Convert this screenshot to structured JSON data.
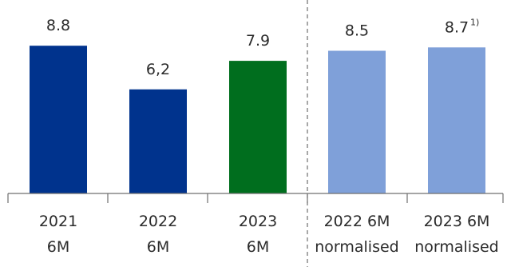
{
  "chart_data": {
    "type": "bar",
    "categories": [
      [
        "2021",
        "6M"
      ],
      [
        "2022",
        "6M"
      ],
      [
        "2023",
        "6M"
      ],
      [
        "2022 6M",
        "normalised"
      ],
      [
        "2023 6M",
        "normalised"
      ]
    ],
    "values": [
      8.8,
      6.2,
      7.9,
      8.5,
      8.7
    ],
    "value_labels": [
      "8.8",
      "6,2",
      "7.9",
      "8.5",
      "8.7"
    ],
    "value_footnotes": [
      "",
      "",
      "",
      "",
      "1)"
    ],
    "bar_colors": [
      "#00338d",
      "#00338d",
      "#006e1e",
      "#7fa0d9",
      "#7fa0d9"
    ],
    "ylim": [
      0,
      10
    ],
    "title": "",
    "xlabel": "",
    "ylabel": "",
    "grid": false,
    "legend": "none",
    "separator": "dashed vertical line between 2023 6M and 2022 6M normalised",
    "axis_color": "#6f6f6f",
    "separator_color": "#7a7a7a",
    "text_color": "#2b2b2b"
  }
}
